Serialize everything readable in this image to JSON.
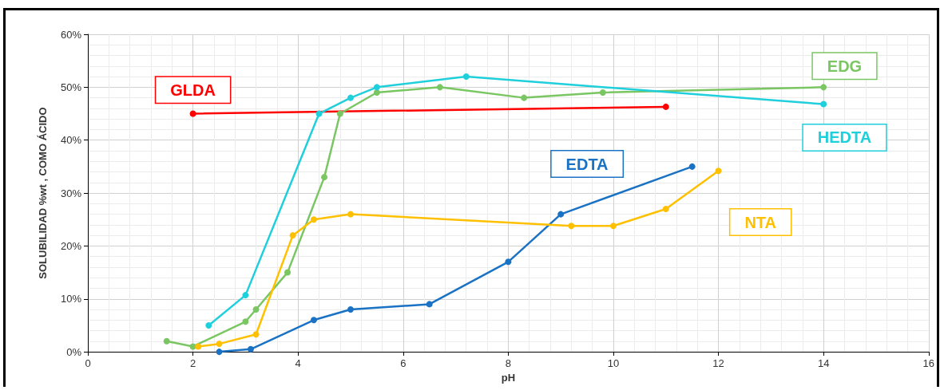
{
  "chart_data": {
    "type": "line",
    "xlabel": "pH",
    "ylabel": "SOLUBILIDAD %wt , COMO ÁCIDO",
    "xlim": [
      0,
      16
    ],
    "xticks": [
      0,
      2,
      4,
      6,
      8,
      10,
      12,
      14,
      16
    ],
    "ylim": [
      0,
      60
    ],
    "yticks": [
      {
        "value": 0,
        "label": "0%"
      },
      {
        "value": 10,
        "label": "10%"
      },
      {
        "value": 20,
        "label": "20%"
      },
      {
        "value": 30,
        "label": "30%"
      },
      {
        "value": 40,
        "label": "40%"
      },
      {
        "value": 50,
        "label": "50%"
      },
      {
        "value": 60,
        "label": "60%"
      }
    ],
    "grid": true,
    "marker": "circle",
    "line_style": "solid",
    "legend": false,
    "series": [
      {
        "name": "GLDA",
        "color": "#ff0000",
        "x": [
          2,
          11
        ],
        "values": [
          45,
          46.3
        ]
      },
      {
        "name": "EDG",
        "color": "#7ac663",
        "x": [
          1.5,
          2,
          3,
          3.2,
          3.8,
          4.5,
          4.8,
          5.5,
          6.7,
          8.3,
          9.8,
          14
        ],
        "values": [
          2,
          1,
          5.7,
          8,
          15,
          33,
          45,
          49,
          50,
          48,
          49,
          50
        ]
      },
      {
        "name": "HEDTA",
        "color": "#1fcfdc",
        "x": [
          2.3,
          3,
          4.4,
          5,
          5.5,
          7.2,
          14
        ],
        "values": [
          5,
          10.7,
          45,
          48,
          50,
          52,
          46.8
        ]
      },
      {
        "name": "EDTA",
        "color": "#1a72c4",
        "x": [
          2.5,
          3.1,
          4.3,
          5,
          6.5,
          8,
          9,
          11.5
        ],
        "values": [
          0,
          0.5,
          6,
          8,
          9,
          17,
          26,
          35
        ]
      },
      {
        "name": "NTA",
        "color": "#ffc000",
        "x": [
          2.1,
          2.5,
          3.2,
          3.9,
          4.3,
          5,
          9.2,
          10,
          11,
          12
        ],
        "values": [
          1,
          1.5,
          3.3,
          22,
          25,
          26,
          23.8,
          23.8,
          27,
          34.2
        ]
      }
    ]
  }
}
